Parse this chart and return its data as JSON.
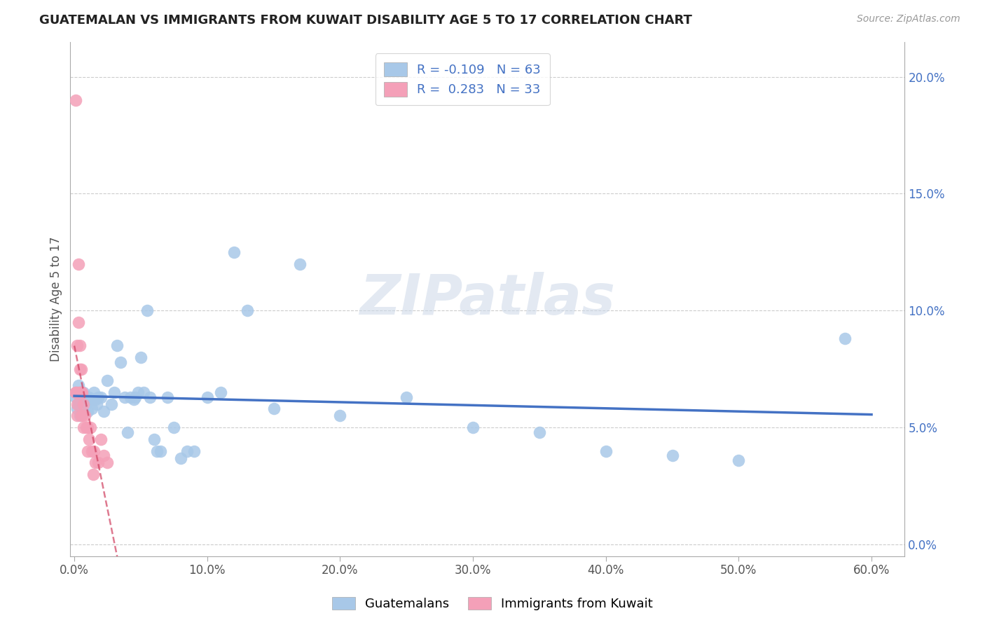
{
  "title": "GUATEMALAN VS IMMIGRANTS FROM KUWAIT DISABILITY AGE 5 TO 17 CORRELATION CHART",
  "source": "Source: ZipAtlas.com",
  "ylabel": "Disability Age 5 to 17",
  "x_ticks": [
    0.0,
    0.1,
    0.2,
    0.3,
    0.4,
    0.5,
    0.6
  ],
  "x_tick_labels": [
    "0.0%",
    "10.0%",
    "20.0%",
    "30.0%",
    "40.0%",
    "50.0%",
    "60.0%"
  ],
  "y_ticks": [
    0.0,
    0.05,
    0.1,
    0.15,
    0.2
  ],
  "y_tick_labels": [
    "0.0%",
    "5.0%",
    "10.0%",
    "15.0%",
    "20.0%"
  ],
  "xlim": [
    -0.003,
    0.625
  ],
  "ylim": [
    -0.005,
    0.215
  ],
  "blue_color": "#a8c8e8",
  "pink_color": "#f4a0b8",
  "blue_line_color": "#4472c4",
  "pink_line_color": "#d04060",
  "R_blue": -0.109,
  "N_blue": 63,
  "R_pink": 0.283,
  "N_pink": 33,
  "legend_label_blue": "Guatemalans",
  "legend_label_pink": "Immigrants from Kuwait",
  "watermark": "ZIPatlas",
  "blue_x": [
    0.001,
    0.002,
    0.002,
    0.003,
    0.003,
    0.004,
    0.004,
    0.005,
    0.005,
    0.006,
    0.006,
    0.007,
    0.007,
    0.008,
    0.009,
    0.01,
    0.01,
    0.011,
    0.012,
    0.013,
    0.015,
    0.016,
    0.017,
    0.018,
    0.02,
    0.022,
    0.025,
    0.028,
    0.03,
    0.032,
    0.035,
    0.038,
    0.04,
    0.042,
    0.045,
    0.046,
    0.048,
    0.05,
    0.052,
    0.055,
    0.057,
    0.06,
    0.062,
    0.065,
    0.07,
    0.075,
    0.08,
    0.085,
    0.09,
    0.1,
    0.11,
    0.12,
    0.13,
    0.15,
    0.17,
    0.2,
    0.25,
    0.3,
    0.35,
    0.4,
    0.45,
    0.5,
    0.58
  ],
  "blue_y": [
    0.063,
    0.058,
    0.065,
    0.06,
    0.068,
    0.055,
    0.062,
    0.06,
    0.065,
    0.063,
    0.058,
    0.065,
    0.06,
    0.062,
    0.06,
    0.063,
    0.057,
    0.063,
    0.062,
    0.058,
    0.065,
    0.062,
    0.06,
    0.063,
    0.063,
    0.057,
    0.07,
    0.06,
    0.065,
    0.085,
    0.078,
    0.063,
    0.048,
    0.063,
    0.062,
    0.063,
    0.065,
    0.08,
    0.065,
    0.1,
    0.063,
    0.045,
    0.04,
    0.04,
    0.063,
    0.05,
    0.037,
    0.04,
    0.04,
    0.063,
    0.065,
    0.125,
    0.1,
    0.058,
    0.12,
    0.055,
    0.063,
    0.05,
    0.048,
    0.04,
    0.038,
    0.036,
    0.088
  ],
  "pink_x": [
    0.001,
    0.001,
    0.001,
    0.002,
    0.002,
    0.002,
    0.003,
    0.003,
    0.003,
    0.004,
    0.004,
    0.004,
    0.005,
    0.005,
    0.005,
    0.006,
    0.006,
    0.007,
    0.007,
    0.008,
    0.009,
    0.01,
    0.01,
    0.011,
    0.012,
    0.013,
    0.014,
    0.015,
    0.016,
    0.018,
    0.02,
    0.022,
    0.025
  ],
  "pink_y": [
    0.19,
    0.065,
    0.065,
    0.085,
    0.06,
    0.055,
    0.12,
    0.095,
    0.065,
    0.085,
    0.075,
    0.065,
    0.075,
    0.065,
    0.055,
    0.065,
    0.055,
    0.05,
    0.06,
    0.055,
    0.05,
    0.05,
    0.04,
    0.045,
    0.05,
    0.04,
    0.03,
    0.04,
    0.035,
    0.035,
    0.045,
    0.038,
    0.035
  ]
}
